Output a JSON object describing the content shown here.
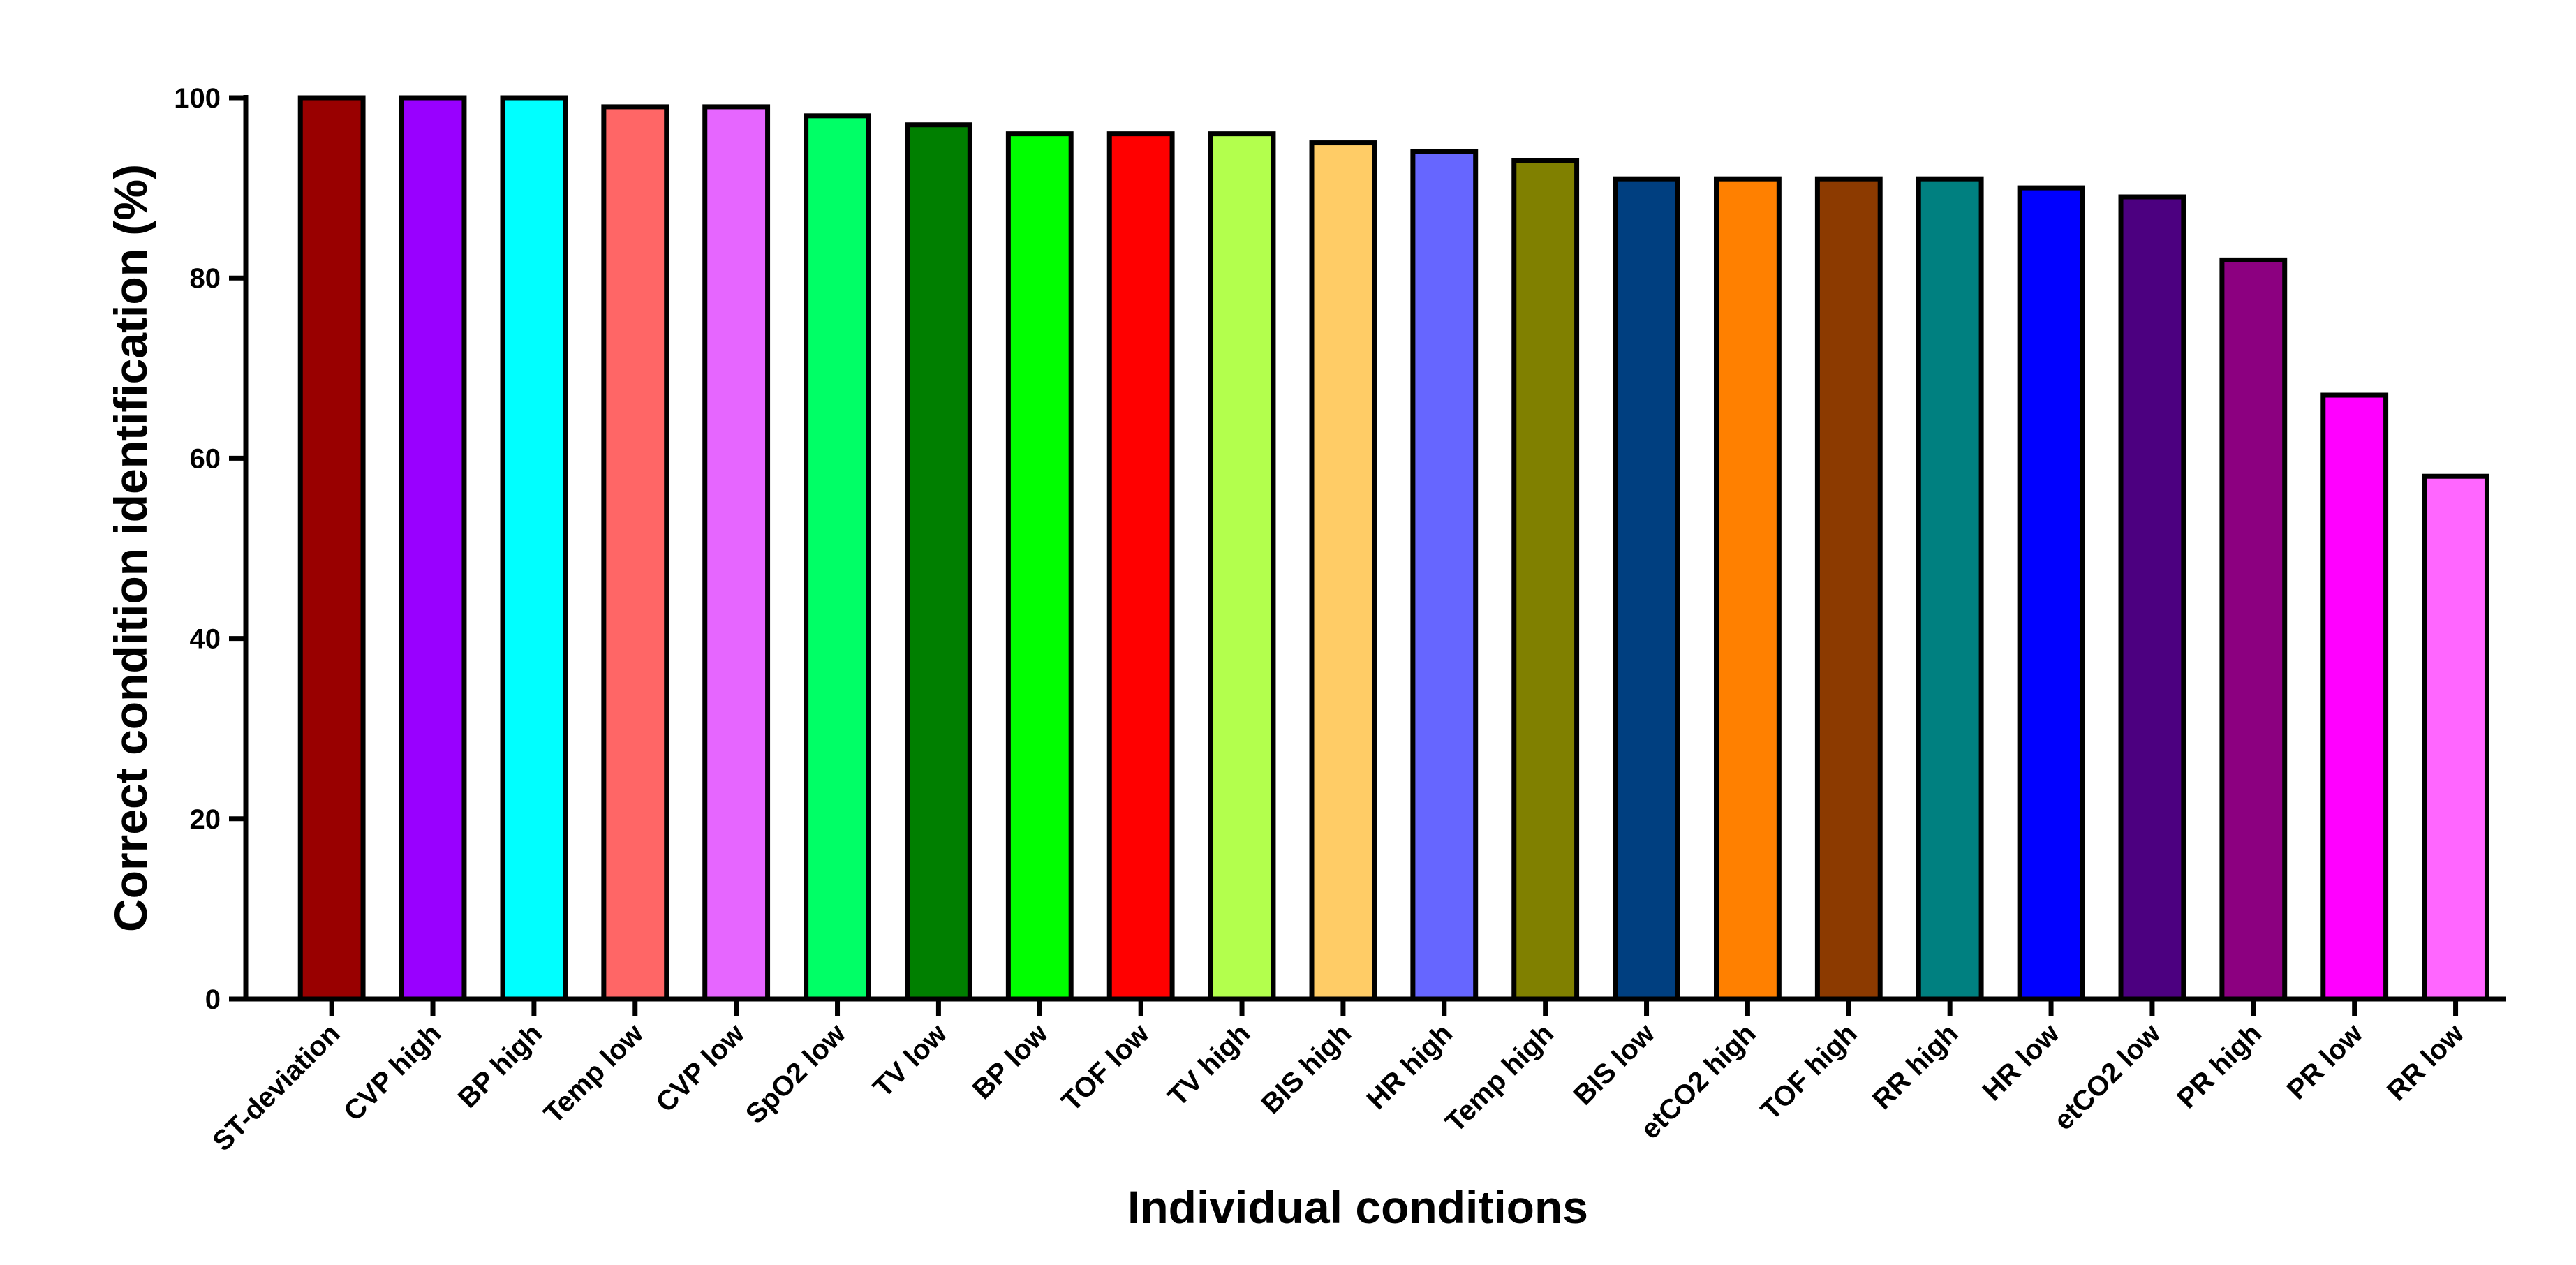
{
  "chart_data": {
    "type": "bar",
    "y_label": "Correct condition identification (%)",
    "x_label": "Individual conditions",
    "categories": [
      "ST-deviation",
      "CVP high",
      "BP high",
      "Temp low",
      "CVP low",
      "SpO2 low",
      "TV low",
      "BP low",
      "TOF low",
      "TV high",
      "BIS high",
      "HR high",
      "Temp high",
      "BIS low",
      "etCO2 high",
      "TOF high",
      "RR high",
      "HR low",
      "etCO2 low",
      "PR high",
      "PR low",
      "RR low"
    ],
    "values": [
      100,
      100,
      100,
      99,
      99,
      98,
      97,
      96,
      96,
      96,
      95,
      94,
      93,
      91,
      91,
      91,
      91,
      90,
      89,
      82,
      67,
      58
    ],
    "colors": [
      "#990000",
      "#9900ff",
      "#00ffff",
      "#ff6666",
      "#e666ff",
      "#00ff66",
      "#007f00",
      "#00ff00",
      "#ff0000",
      "#b3ff4d",
      "#ffcc66",
      "#6666ff",
      "#808000",
      "#003f80",
      "#ff8000",
      "#8c3a00",
      "#008080",
      "#0000ff",
      "#4c0080",
      "#8c0080",
      "#ff00ff",
      "#ff66ff"
    ],
    "ylim": [
      0,
      100
    ],
    "yticks": [
      0,
      20,
      40,
      60,
      80,
      100
    ],
    "grid": false
  }
}
